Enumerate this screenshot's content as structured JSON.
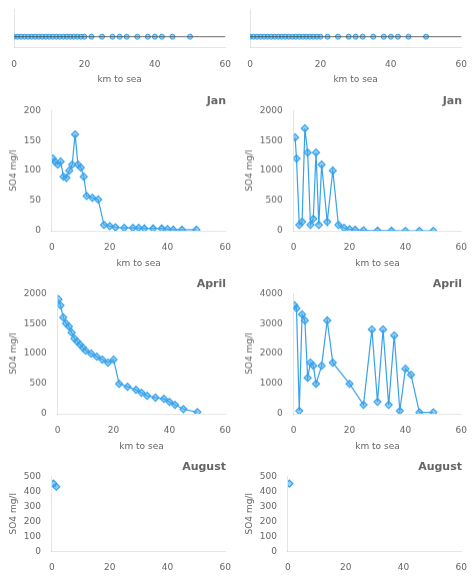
{
  "chart_data": [
    {
      "type": "scatter",
      "x": [
        0,
        1,
        2,
        3,
        4,
        5,
        6,
        7,
        8,
        9,
        10,
        11,
        12,
        13,
        14,
        15,
        16,
        17,
        18,
        19,
        20,
        22,
        25,
        28,
        30,
        32,
        35,
        38,
        40,
        42,
        45,
        50
      ],
      "values": [
        0.5,
        0.5,
        0.5,
        0.5,
        0.5,
        0.5,
        0.5,
        0.5,
        0.5,
        0.5,
        0.5,
        0.5,
        0.5,
        0.5,
        0.5,
        0.5,
        0.5,
        0.5,
        0.5,
        0.5,
        0.5,
        0.5,
        0.5,
        0.5,
        0.5,
        0.5,
        0.5,
        0.5,
        0.5,
        0.5,
        0.5,
        0.5
      ],
      "hline": 0.5,
      "xlim": [
        0,
        60
      ],
      "xticks": [
        0,
        20,
        40,
        60
      ],
      "xlabel": "km to sea",
      "ylim": [
        -0.5,
        3
      ],
      "yticks": [
        0
      ],
      "tick_labels": "x",
      "marker": "circle",
      "grid": false
    },
    {
      "type": "scatter",
      "x": [
        0,
        1,
        2,
        3,
        4,
        5,
        6,
        7,
        8,
        9,
        10,
        11,
        12,
        13,
        14,
        15,
        16,
        17,
        18,
        19,
        20,
        22,
        25,
        28,
        30,
        32,
        35,
        38,
        40,
        42,
        45,
        50
      ],
      "values": [
        0.5,
        0.5,
        0.5,
        0.5,
        0.5,
        0.5,
        0.5,
        0.5,
        0.5,
        0.5,
        0.5,
        0.5,
        0.5,
        0.5,
        0.5,
        0.5,
        0.5,
        0.5,
        0.5,
        0.5,
        0.5,
        0.5,
        0.5,
        0.5,
        0.5,
        0.5,
        0.5,
        0.5,
        0.5,
        0.5,
        0.5,
        0.5
      ],
      "hline": 0.5,
      "xlim": [
        0,
        60
      ],
      "xticks": [
        0,
        20,
        40,
        60
      ],
      "xlabel": "km to sea",
      "ylim": [
        -0.5,
        3
      ],
      "yticks": [
        0
      ],
      "tick_labels": "x",
      "marker": "circle",
      "grid": false
    },
    {
      "type": "line",
      "title": "Jan",
      "x": [
        0.3,
        1,
        2,
        3,
        4,
        5,
        6,
        7,
        8,
        9,
        10,
        11,
        12,
        14,
        16,
        18,
        20,
        22,
        25,
        28,
        30,
        32,
        35,
        38,
        40,
        42,
        45,
        50
      ],
      "values": [
        120,
        115,
        110,
        115,
        90,
        88,
        100,
        110,
        160,
        110,
        105,
        90,
        58,
        55,
        52,
        10,
        8,
        6,
        5,
        5,
        5,
        4,
        4,
        4,
        3,
        2,
        2,
        2
      ],
      "xlim": [
        0,
        60
      ],
      "xticks": [
        0,
        20,
        40,
        60
      ],
      "xlabel": "km to sea",
      "ylim": [
        0,
        200
      ],
      "yticks": [
        0,
        50,
        100,
        150,
        200
      ],
      "ylabel": "SO4 mg/l",
      "marker": "diamond",
      "line_style": "solid",
      "grid": false
    },
    {
      "type": "line",
      "title": "Jan",
      "x": [
        0.5,
        1,
        2,
        3,
        4,
        5,
        6,
        7,
        8,
        9,
        10,
        12,
        14,
        16,
        18,
        20,
        22,
        25,
        30,
        35,
        40,
        45,
        50
      ],
      "values": [
        1550,
        1200,
        100,
        150,
        1700,
        1300,
        100,
        200,
        1300,
        100,
        1100,
        150,
        1000,
        100,
        50,
        30,
        20,
        10,
        5,
        5,
        2,
        2,
        1
      ],
      "xlim": [
        0,
        60
      ],
      "xticks": [
        0,
        20,
        40,
        60
      ],
      "xlabel": "km to sea",
      "ylim": [
        0,
        2000
      ],
      "yticks": [
        0,
        500,
        1000,
        1500,
        2000
      ],
      "ylabel": "SO4 mg/l",
      "marker": "diamond",
      "line_style": "solid",
      "grid": false
    },
    {
      "type": "line",
      "title": "April",
      "x": [
        0.3,
        1,
        2,
        3,
        4,
        5,
        6,
        7,
        8,
        9,
        10,
        12,
        14,
        16,
        18,
        20,
        22,
        25,
        28,
        30,
        32,
        35,
        38,
        40,
        42,
        45,
        50
      ],
      "values": [
        1900,
        1800,
        1600,
        1500,
        1450,
        1350,
        1250,
        1200,
        1150,
        1100,
        1050,
        1000,
        950,
        900,
        850,
        900,
        500,
        450,
        400,
        350,
        300,
        270,
        250,
        200,
        150,
        80,
        30
      ],
      "xlim": [
        0,
        60
      ],
      "xticks": [
        0,
        20,
        40,
        60
      ],
      "xlabel": "km to sea",
      "ylim": [
        0,
        2000
      ],
      "yticks": [
        0,
        500,
        1000,
        1500,
        2000
      ],
      "ylabel": "SO4 mg/l",
      "marker": "diamond",
      "line_style": "solid",
      "grid": false
    },
    {
      "type": "line",
      "title": "April",
      "x": [
        0.3,
        1,
        2,
        3,
        4,
        5,
        6,
        7,
        8,
        10,
        12,
        14,
        20,
        25,
        28,
        30,
        32,
        34,
        36,
        38,
        40,
        42,
        45,
        50
      ],
      "values": [
        3600,
        3500,
        100,
        3300,
        3100,
        1200,
        1700,
        1600,
        1000,
        1600,
        3100,
        1700,
        1000,
        300,
        2800,
        400,
        2800,
        300,
        2600,
        100,
        1500,
        1300,
        50,
        50
      ],
      "xlim": [
        0,
        60
      ],
      "xticks": [
        0,
        20,
        40,
        60
      ],
      "xlabel": "km to sea",
      "ylim": [
        0,
        4000
      ],
      "yticks": [
        0,
        1000,
        2000,
        3000,
        4000
      ],
      "ylabel": "SO4 mg/l",
      "marker": "diamond",
      "line_style": "solid",
      "grid": false
    },
    {
      "type": "line",
      "title": "August",
      "x": [
        0.5,
        1.5
      ],
      "values": [
        450,
        430
      ],
      "xlim": [
        0,
        60
      ],
      "xticks": [
        0,
        20,
        40,
        60
      ],
      "ylim": [
        0,
        500
      ],
      "yticks": [
        0,
        100,
        200,
        300,
        400,
        500
      ],
      "ylabel": "SO4 mg/l",
      "marker": "diamond",
      "line_style": "solid",
      "grid": false
    },
    {
      "type": "line",
      "title": "August",
      "x": [
        0.5
      ],
      "values": [
        450
      ],
      "xlim": [
        0,
        60
      ],
      "xticks": [
        0,
        20,
        40,
        60
      ],
      "ylim": [
        0,
        500
      ],
      "yticks": [
        0,
        100,
        200,
        300,
        400,
        500
      ],
      "ylabel": "SO4 mg/l",
      "marker": "diamond",
      "line_style": "solid",
      "grid": false
    }
  ]
}
